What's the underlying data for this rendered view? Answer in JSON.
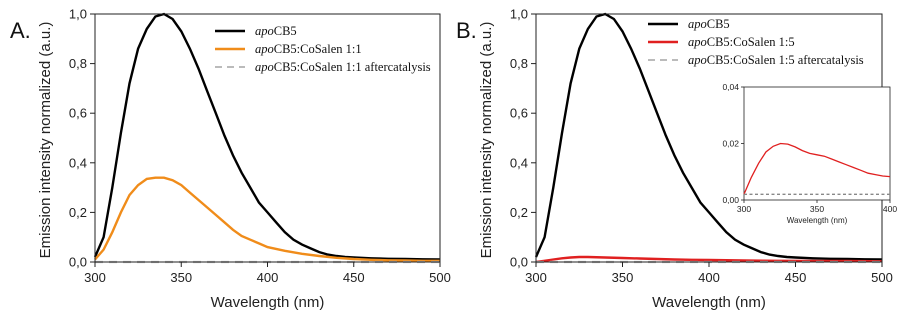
{
  "chart_data": [
    {
      "type": "line",
      "panel_label": "A.",
      "xlabel": "Wavelength (nm)",
      "ylabel": "Emission intensity normalized (a.u.)",
      "xlim": [
        300,
        500
      ],
      "ylim": [
        0,
        1.0
      ],
      "xticks": [
        "300",
        "350",
        "400",
        "450",
        "500"
      ],
      "yticks": [
        "0,0",
        "0,2",
        "0,4",
        "0,6",
        "0,8",
        "1,0"
      ],
      "legend_position": "top-right",
      "series": [
        {
          "name_italic": "apo",
          "name_rest": "CB5",
          "color": "#000000",
          "dash": "none",
          "points": [
            [
              300,
              0.02
            ],
            [
              305,
              0.1
            ],
            [
              310,
              0.3
            ],
            [
              315,
              0.52
            ],
            [
              320,
              0.72
            ],
            [
              325,
              0.86
            ],
            [
              330,
              0.94
            ],
            [
              335,
              0.99
            ],
            [
              340,
              1.0
            ],
            [
              345,
              0.98
            ],
            [
              350,
              0.93
            ],
            [
              355,
              0.86
            ],
            [
              360,
              0.78
            ],
            [
              365,
              0.69
            ],
            [
              370,
              0.6
            ],
            [
              375,
              0.51
            ],
            [
              380,
              0.43
            ],
            [
              385,
              0.36
            ],
            [
              390,
              0.3
            ],
            [
              395,
              0.24
            ],
            [
              400,
              0.2
            ],
            [
              405,
              0.16
            ],
            [
              410,
              0.12
            ],
            [
              415,
              0.09
            ],
            [
              420,
              0.07
            ],
            [
              425,
              0.055
            ],
            [
              430,
              0.04
            ],
            [
              435,
              0.03
            ],
            [
              440,
              0.024
            ],
            [
              445,
              0.02
            ],
            [
              450,
              0.018
            ],
            [
              460,
              0.015
            ],
            [
              470,
              0.013
            ],
            [
              480,
              0.012
            ],
            [
              490,
              0.011
            ],
            [
              500,
              0.01
            ]
          ]
        },
        {
          "name_italic": "apo",
          "name_rest": "CB5:CoSalen 1:1",
          "color": "#f08c1a",
          "dash": "none",
          "points": [
            [
              300,
              0.01
            ],
            [
              305,
              0.05
            ],
            [
              310,
              0.12
            ],
            [
              315,
              0.2
            ],
            [
              320,
              0.27
            ],
            [
              325,
              0.31
            ],
            [
              330,
              0.335
            ],
            [
              335,
              0.34
            ],
            [
              340,
              0.34
            ],
            [
              345,
              0.33
            ],
            [
              350,
              0.31
            ],
            [
              355,
              0.28
            ],
            [
              360,
              0.25
            ],
            [
              365,
              0.22
            ],
            [
              370,
              0.19
            ],
            [
              375,
              0.16
            ],
            [
              380,
              0.13
            ],
            [
              385,
              0.105
            ],
            [
              390,
              0.09
            ],
            [
              395,
              0.075
            ],
            [
              400,
              0.06
            ],
            [
              410,
              0.045
            ],
            [
              420,
              0.033
            ],
            [
              430,
              0.024
            ],
            [
              440,
              0.017
            ],
            [
              450,
              0.012
            ],
            [
              460,
              0.009
            ],
            [
              470,
              0.007
            ],
            [
              480,
              0.006
            ],
            [
              490,
              0.005
            ],
            [
              500,
              0.005
            ]
          ]
        },
        {
          "name_italic": "apo",
          "name_rest": "CB5:CoSalen 1:1 aftercatalysis",
          "color": "#bbbbbb",
          "dash": "dashed",
          "points": [
            [
              300,
              0.0
            ],
            [
              500,
              0.0
            ]
          ]
        }
      ]
    },
    {
      "type": "line",
      "panel_label": "B.",
      "xlabel": "Wavelength (nm)",
      "ylabel": "Emission intensity normalized (a.u.)",
      "xlim": [
        300,
        500
      ],
      "ylim": [
        0,
        1.0
      ],
      "xticks": [
        "300",
        "350",
        "400",
        "450",
        "500"
      ],
      "yticks": [
        "0,0",
        "0,2",
        "0,4",
        "0,6",
        "0,8",
        "1,0"
      ],
      "legend_position": "top-right",
      "series": [
        {
          "name_italic": "apo",
          "name_rest": "CB5",
          "color": "#000000",
          "dash": "none",
          "points": [
            [
              300,
              0.02
            ],
            [
              305,
              0.1
            ],
            [
              310,
              0.3
            ],
            [
              315,
              0.52
            ],
            [
              320,
              0.72
            ],
            [
              325,
              0.86
            ],
            [
              330,
              0.94
            ],
            [
              335,
              0.99
            ],
            [
              340,
              1.0
            ],
            [
              345,
              0.98
            ],
            [
              350,
              0.93
            ],
            [
              355,
              0.86
            ],
            [
              360,
              0.78
            ],
            [
              365,
              0.69
            ],
            [
              370,
              0.6
            ],
            [
              375,
              0.51
            ],
            [
              380,
              0.43
            ],
            [
              385,
              0.36
            ],
            [
              390,
              0.3
            ],
            [
              395,
              0.24
            ],
            [
              400,
              0.2
            ],
            [
              405,
              0.16
            ],
            [
              410,
              0.12
            ],
            [
              415,
              0.09
            ],
            [
              420,
              0.07
            ],
            [
              425,
              0.055
            ],
            [
              430,
              0.04
            ],
            [
              435,
              0.03
            ],
            [
              440,
              0.024
            ],
            [
              445,
              0.02
            ],
            [
              450,
              0.018
            ],
            [
              460,
              0.015
            ],
            [
              470,
              0.013
            ],
            [
              480,
              0.012
            ],
            [
              490,
              0.011
            ],
            [
              500,
              0.01
            ]
          ]
        },
        {
          "name_italic": "apo",
          "name_rest": "CB5:CoSalen 1:5",
          "color": "#e02020",
          "dash": "none",
          "points": [
            [
              300,
              0.0
            ],
            [
              305,
              0.005
            ],
            [
              310,
              0.01
            ],
            [
              315,
              0.015
            ],
            [
              320,
              0.018
            ],
            [
              325,
              0.02
            ],
            [
              330,
              0.02
            ],
            [
              340,
              0.018
            ],
            [
              350,
              0.016
            ],
            [
              360,
              0.014
            ],
            [
              370,
              0.012
            ],
            [
              380,
              0.01
            ],
            [
              390,
              0.009
            ],
            [
              400,
              0.008
            ],
            [
              420,
              0.006
            ],
            [
              440,
              0.005
            ],
            [
              460,
              0.004
            ],
            [
              480,
              0.004
            ],
            [
              500,
              0.003
            ]
          ]
        },
        {
          "name_italic": "apo",
          "name_rest": "CB5:CoSalen 1:5 aftercatalysis",
          "color": "#bbbbbb",
          "dash": "dashed",
          "points": [
            [
              300,
              0.0
            ],
            [
              500,
              0.0
            ]
          ]
        }
      ],
      "inset": {
        "xlabel": "Wavelength (nm)",
        "xlim": [
          300,
          400
        ],
        "ylim": [
          0,
          0.04
        ],
        "xticks": [
          "300",
          "350",
          "400"
        ],
        "yticks": [
          "0,00",
          "0,02",
          "0,04"
        ],
        "series": [
          {
            "color": "#e02020",
            "dash": "none",
            "points": [
              [
                300,
                0.002
              ],
              [
                305,
                0.008
              ],
              [
                310,
                0.013
              ],
              [
                315,
                0.017
              ],
              [
                320,
                0.019
              ],
              [
                325,
                0.02
              ],
              [
                330,
                0.0198
              ],
              [
                335,
                0.0188
              ],
              [
                340,
                0.0175
              ],
              [
                345,
                0.0165
              ],
              [
                350,
                0.016
              ],
              [
                355,
                0.0155
              ],
              [
                360,
                0.0145
              ],
              [
                365,
                0.0135
              ],
              [
                370,
                0.0125
              ],
              [
                375,
                0.0115
              ],
              [
                380,
                0.0105
              ],
              [
                385,
                0.0095
              ],
              [
                390,
                0.009
              ],
              [
                395,
                0.0085
              ],
              [
                400,
                0.0083
              ]
            ]
          },
          {
            "color": "#888888",
            "dash": "dashed",
            "points": [
              [
                300,
                0.002
              ],
              [
                400,
                0.002
              ]
            ]
          }
        ]
      }
    }
  ]
}
